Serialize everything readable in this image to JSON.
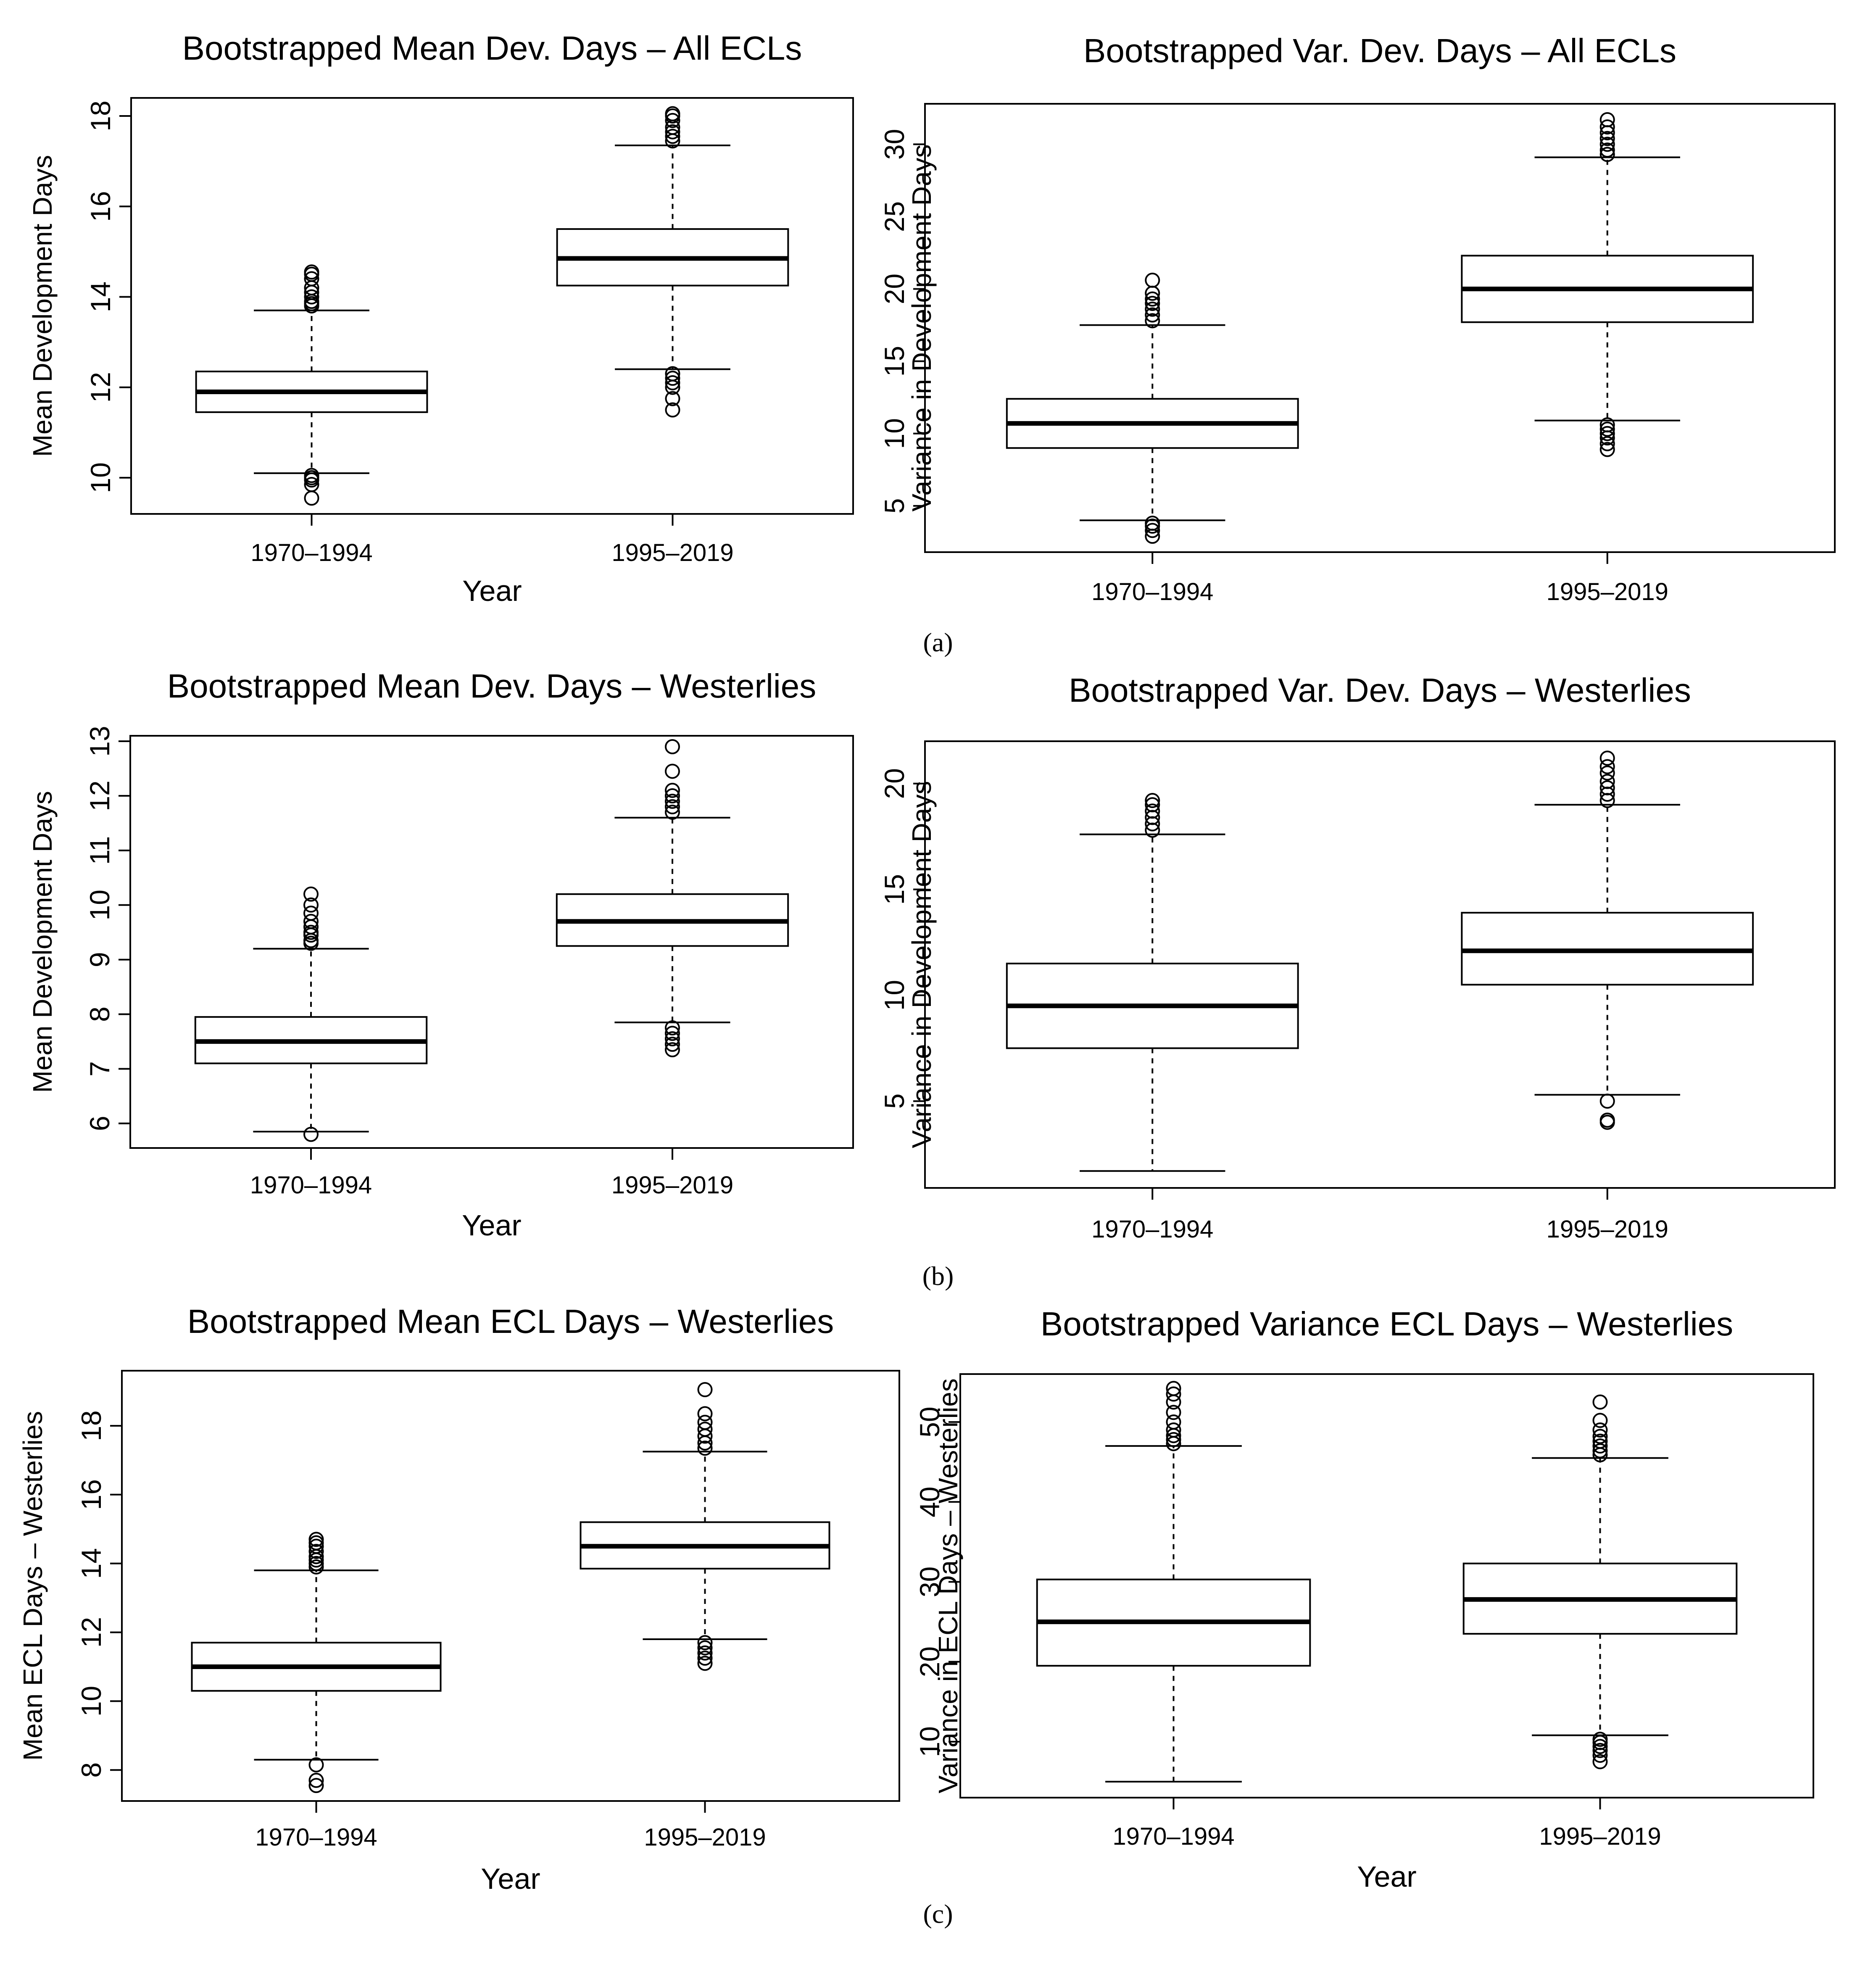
{
  "figure": {
    "panel_labels": [
      "(a)",
      "(b)",
      "(c)"
    ]
  },
  "chart_data": [
    {
      "type": "boxplot",
      "title": "Bootstrapped Mean Dev. Days – All ECLs",
      "xlabel": "Year",
      "ylabel": "Mean Development Days",
      "categories": [
        "1970–1994",
        "1995–2019"
      ],
      "ylim": [
        9.2,
        18.4
      ],
      "yticks": [
        10,
        12,
        14,
        16,
        18
      ],
      "grid": false,
      "boxes": [
        {
          "lower_whisker": 10.1,
          "q1": 11.45,
          "median": 11.9,
          "q3": 12.35,
          "upper_whisker": 13.7,
          "outliers": [
            9.55,
            9.85,
            9.95,
            10.0,
            10.05,
            13.8,
            13.85,
            13.9,
            14.0,
            14.1,
            14.2,
            14.4,
            14.5,
            14.55
          ]
        },
        {
          "lower_whisker": 12.4,
          "q1": 14.25,
          "median": 14.85,
          "q3": 15.5,
          "upper_whisker": 17.35,
          "outliers": [
            11.5,
            11.75,
            12.0,
            12.1,
            12.2,
            12.3,
            17.45,
            17.55,
            17.65,
            17.75,
            17.9,
            18.0,
            18.05
          ]
        }
      ]
    },
    {
      "type": "boxplot",
      "title": "Bootstrapped Var. Dev. Days – All ECLs",
      "xlabel": "",
      "ylabel": "Variance in Development Days",
      "categories": [
        "1970–1994",
        "1995–2019"
      ],
      "ylim": [
        1.8,
        32.8
      ],
      "yticks": [
        5,
        10,
        15,
        20,
        25,
        30
      ],
      "grid": false,
      "boxes": [
        {
          "lower_whisker": 4.0,
          "q1": 9.0,
          "median": 10.7,
          "q3": 12.4,
          "upper_whisker": 17.5,
          "outliers": [
            2.9,
            3.3,
            3.6,
            3.8,
            17.8,
            18.2,
            18.6,
            19.0,
            19.3,
            19.7,
            20.6
          ]
        },
        {
          "lower_whisker": 10.9,
          "q1": 17.7,
          "median": 20.0,
          "q3": 22.3,
          "upper_whisker": 29.1,
          "outliers": [
            8.9,
            9.3,
            9.7,
            10.0,
            10.3,
            10.6,
            29.3,
            29.6,
            30.0,
            30.4,
            30.8,
            31.2,
            31.7
          ]
        }
      ]
    },
    {
      "type": "boxplot",
      "title": "Bootstrapped Mean Dev. Days – Westerlies",
      "xlabel": "Year",
      "ylabel": "Mean Development Days",
      "categories": [
        "1970–1994",
        "1995–2019"
      ],
      "ylim": [
        5.55,
        13.1
      ],
      "yticks": [
        6,
        7,
        8,
        9,
        10,
        11,
        12,
        13
      ],
      "grid": false,
      "boxes": [
        {
          "lower_whisker": 5.85,
          "q1": 7.1,
          "median": 7.5,
          "q3": 7.95,
          "upper_whisker": 9.2,
          "outliers": [
            5.8,
            9.3,
            9.35,
            9.45,
            9.5,
            9.6,
            9.7,
            9.85,
            10.0,
            10.2
          ]
        },
        {
          "lower_whisker": 7.85,
          "q1": 9.25,
          "median": 9.7,
          "q3": 10.2,
          "upper_whisker": 11.6,
          "outliers": [
            7.35,
            7.45,
            7.55,
            7.65,
            7.75,
            11.7,
            11.8,
            11.9,
            12.0,
            12.1,
            12.45,
            12.9
          ]
        }
      ]
    },
    {
      "type": "boxplot",
      "title": "Bootstrapped Var. Dev. Days – Westerlies",
      "xlabel": "",
      "ylabel": "Variance in Development Days",
      "categories": [
        "1970–1994",
        "1995–2019"
      ],
      "ylim": [
        0.9,
        22.0
      ],
      "yticks": [
        5,
        10,
        15,
        20
      ],
      "grid": false,
      "boxes": [
        {
          "lower_whisker": 1.7,
          "q1": 7.5,
          "median": 9.5,
          "q3": 11.5,
          "upper_whisker": 17.6,
          "outliers": [
            17.8,
            18.1,
            18.4,
            18.7,
            19.0,
            19.2
          ]
        },
        {
          "lower_whisker": 5.3,
          "q1": 10.5,
          "median": 12.1,
          "q3": 13.9,
          "upper_whisker": 19.0,
          "outliers": [
            4.0,
            4.1,
            5.0,
            19.2,
            19.5,
            19.8,
            20.1,
            20.5,
            20.8,
            21.2
          ]
        }
      ]
    },
    {
      "type": "boxplot",
      "title": "Bootstrapped Mean ECL Days – Westerlies",
      "xlabel": "Year",
      "ylabel": "Mean ECL Days – Westerlies",
      "categories": [
        "1970–1994",
        "1995–2019"
      ],
      "ylim": [
        7.1,
        19.6
      ],
      "yticks": [
        8,
        10,
        12,
        14,
        16,
        18
      ],
      "grid": false,
      "boxes": [
        {
          "lower_whisker": 8.3,
          "q1": 10.3,
          "median": 11.0,
          "q3": 11.7,
          "upper_whisker": 13.8,
          "outliers": [
            7.55,
            7.7,
            8.15,
            13.9,
            14.0,
            14.1,
            14.2,
            14.35,
            14.5,
            14.6,
            14.7
          ]
        },
        {
          "lower_whisker": 11.8,
          "q1": 13.85,
          "median": 14.5,
          "q3": 15.2,
          "upper_whisker": 17.25,
          "outliers": [
            11.1,
            11.25,
            11.4,
            11.55,
            11.7,
            17.35,
            17.5,
            17.7,
            17.9,
            18.1,
            18.35,
            19.05
          ]
        }
      ]
    },
    {
      "type": "boxplot",
      "title": "Bootstrapped Variance ECL Days – Westerlies",
      "xlabel": "Year",
      "ylabel": "Variance in ECL Days – Westerlies",
      "categories": [
        "1970–1994",
        "1995–2019"
      ],
      "ylim": [
        3.0,
        56.0
      ],
      "yticks": [
        10,
        20,
        30,
        40,
        50
      ],
      "grid": false,
      "boxes": [
        {
          "lower_whisker": 5.0,
          "q1": 19.5,
          "median": 25.0,
          "q3": 30.3,
          "upper_whisker": 47.0,
          "outliers": [
            47.3,
            47.8,
            48.3,
            49.0,
            50.0,
            51.2,
            52.5,
            53.5,
            54.2
          ]
        },
        {
          "lower_whisker": 10.8,
          "q1": 23.5,
          "median": 27.8,
          "q3": 32.3,
          "upper_whisker": 45.5,
          "outliers": [
            7.5,
            8.3,
            8.9,
            9.4,
            9.9,
            10.3,
            45.9,
            46.4,
            47.0,
            47.6,
            48.2,
            49.0,
            50.2,
            52.5
          ]
        }
      ]
    }
  ]
}
